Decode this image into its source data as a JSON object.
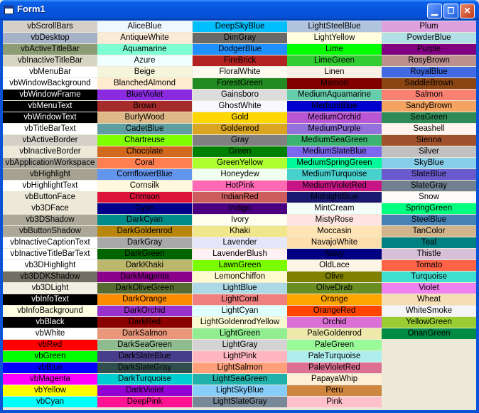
{
  "window": {
    "title": "Form1",
    "min_glyph": "▁",
    "max_glyph": "☐",
    "close_glyph": "✕"
  },
  "columns": [
    [
      {
        "label": "vbScrollBars",
        "bg": "#D4D0C8",
        "fg": "#000000"
      },
      {
        "label": "vbDesktop",
        "bg": "#A6B2C7",
        "fg": "#000000"
      },
      {
        "label": "vbActiveTitleBar",
        "bg": "#8C9D75",
        "fg": "#000000"
      },
      {
        "label": "vbInactiveTitleBar",
        "bg": "#D6D5C4",
        "fg": "#000000"
      },
      {
        "label": "vbMenuBar",
        "bg": "#FFFFFF",
        "fg": "#000000"
      },
      {
        "label": "vbWindowBackground",
        "bg": "#FFFFFF",
        "fg": "#000000"
      },
      {
        "label": "vbWindowFrame",
        "bg": "#000000",
        "fg": "#FFFFFF"
      },
      {
        "label": "vbMenuText",
        "bg": "#000000",
        "fg": "#FFFFFF"
      },
      {
        "label": "vbWindowText",
        "bg": "#000000",
        "fg": "#FFFFFF"
      },
      {
        "label": "vbTitleBarText",
        "bg": "#FFFFFF",
        "fg": "#000000"
      },
      {
        "label": "vbActiveBorder",
        "bg": "#D4D0C8",
        "fg": "#000000"
      },
      {
        "label": "vbInactiveBorder",
        "bg": "#ECE9D8",
        "fg": "#000000"
      },
      {
        "label": "vbApplicationWorkspace",
        "bg": "#A7A49A",
        "fg": "#000000"
      },
      {
        "label": "vbHighlight",
        "bg": "#A6A291",
        "fg": "#000000"
      },
      {
        "label": "vbHighlightText",
        "bg": "#FFFFFF",
        "fg": "#000000"
      },
      {
        "label": "vbButtonFace",
        "bg": "#ECE9D8",
        "fg": "#000000"
      },
      {
        "label": "vb3DFace",
        "bg": "#ECE9D8",
        "fg": "#000000"
      },
      {
        "label": "vb3DShadow",
        "bg": "#ACA899",
        "fg": "#000000"
      },
      {
        "label": "vbButtonShadow",
        "bg": "#ACA899",
        "fg": "#000000"
      },
      {
        "label": "vbInactiveCaptionText",
        "bg": "#FFFFFF",
        "fg": "#000000"
      },
      {
        "label": "vbInactiveTitleBarText",
        "bg": "#FFFFFF",
        "fg": "#000000"
      },
      {
        "label": "vb3DHighlight",
        "bg": "#FFFFFF",
        "fg": "#000000"
      },
      {
        "label": "vb3DDKShadow",
        "bg": "#716F64",
        "fg": "#000000"
      },
      {
        "label": "vb3DLight",
        "bg": "#F1EFE2",
        "fg": "#000000"
      },
      {
        "label": "vbInfoText",
        "bg": "#000000",
        "fg": "#FFFFFF"
      },
      {
        "label": "vbInfoBackground",
        "bg": "#FFFFE1",
        "fg": "#000000"
      },
      {
        "label": "vbBlack",
        "bg": "#000000",
        "fg": "#FFFFFF"
      },
      {
        "label": "vbWhite",
        "bg": "#FFFFFF",
        "fg": "#000000"
      },
      {
        "label": "vbRed",
        "bg": "#FF0000",
        "fg": "#000000"
      },
      {
        "label": "vbGreen",
        "bg": "#00FF00",
        "fg": "#000000"
      },
      {
        "label": "vbBlue",
        "bg": "#0000FF",
        "fg": "#000000"
      },
      {
        "label": "vbMagenta",
        "bg": "#FF00FF",
        "fg": "#000000"
      },
      {
        "label": "vbYellow",
        "bg": "#FFFF00",
        "fg": "#000000"
      },
      {
        "label": "vbCyan",
        "bg": "#00FFFF",
        "fg": "#000000"
      }
    ],
    [
      {
        "label": "AliceBlue",
        "bg": "#F0F8FF",
        "fg": "#000000"
      },
      {
        "label": "AntiqueWhite",
        "bg": "#FAEBD7",
        "fg": "#000000"
      },
      {
        "label": "Aquamarine",
        "bg": "#7FFFD4",
        "fg": "#000000"
      },
      {
        "label": "Azure",
        "bg": "#F0FFFF",
        "fg": "#000000"
      },
      {
        "label": "Beige",
        "bg": "#F5F5DC",
        "fg": "#000000"
      },
      {
        "label": "BlanchedAlmond",
        "bg": "#FFEBCD",
        "fg": "#000000"
      },
      {
        "label": "BlueViolet",
        "bg": "#8A2BE2",
        "fg": "#000000"
      },
      {
        "label": "Brown",
        "bg": "#A52A2A",
        "fg": "#000000"
      },
      {
        "label": "BurlyWood",
        "bg": "#DEB887",
        "fg": "#000000"
      },
      {
        "label": "CadetBlue",
        "bg": "#5F9EA0",
        "fg": "#000000"
      },
      {
        "label": "Chartreuse",
        "bg": "#7FFF00",
        "fg": "#000000"
      },
      {
        "label": "Chocolate",
        "bg": "#D2691E",
        "fg": "#000000"
      },
      {
        "label": "Coral",
        "bg": "#FF7F50",
        "fg": "#000000"
      },
      {
        "label": "CornflowerBlue",
        "bg": "#6495ED",
        "fg": "#000000"
      },
      {
        "label": "Cornsilk",
        "bg": "#FFF8DC",
        "fg": "#000000"
      },
      {
        "label": "Crimson",
        "bg": "#DC143C",
        "fg": "#000000"
      },
      {
        "label": "Cyan",
        "bg": "#00008B",
        "fg": "#000000"
      },
      {
        "label": "DarkCyan",
        "bg": "#008B8B",
        "fg": "#000000"
      },
      {
        "label": "DarkGoldenrod",
        "bg": "#B8860B",
        "fg": "#000000"
      },
      {
        "label": "DarkGray",
        "bg": "#A9A9A9",
        "fg": "#000000"
      },
      {
        "label": "DarkGreen",
        "bg": "#006400",
        "fg": "#000000"
      },
      {
        "label": "DarkKhaki",
        "bg": "#BDB76B",
        "fg": "#000000"
      },
      {
        "label": "DarkMagenta",
        "bg": "#8B008B",
        "fg": "#000000"
      },
      {
        "label": "DarkOliveGreen",
        "bg": "#556B2F",
        "fg": "#000000"
      },
      {
        "label": "DarkOrange",
        "bg": "#FF8C00",
        "fg": "#000000"
      },
      {
        "label": "DarkOrchid",
        "bg": "#9932CC",
        "fg": "#000000"
      },
      {
        "label": "DarkRed",
        "bg": "#8B0000",
        "fg": "#000000"
      },
      {
        "label": "DarkSalmon",
        "bg": "#E9967A",
        "fg": "#000000"
      },
      {
        "label": "DarkSeaGreen",
        "bg": "#8FBC8F",
        "fg": "#000000"
      },
      {
        "label": "DarkSlateBlue",
        "bg": "#483D8B",
        "fg": "#000000"
      },
      {
        "label": "DarkSlateGray",
        "bg": "#2F4F4F",
        "fg": "#000000"
      },
      {
        "label": "DarkTurquoise",
        "bg": "#00CED1",
        "fg": "#000000"
      },
      {
        "label": "DarkViolet",
        "bg": "#9400D3",
        "fg": "#000000"
      },
      {
        "label": "DeepPink",
        "bg": "#FF1493",
        "fg": "#000000"
      }
    ],
    [
      {
        "label": "DeepSkyBlue",
        "bg": "#00BFFF",
        "fg": "#000000"
      },
      {
        "label": "DimGray",
        "bg": "#696969",
        "fg": "#000000"
      },
      {
        "label": "DodgerBlue",
        "bg": "#1E90FF",
        "fg": "#000000"
      },
      {
        "label": "FireBrick",
        "bg": "#B22222",
        "fg": "#000000"
      },
      {
        "label": "FloralWhite",
        "bg": "#FFFAF0",
        "fg": "#000000"
      },
      {
        "label": "ForestGreen",
        "bg": "#228B22",
        "fg": "#000000"
      },
      {
        "label": "Gainsboro",
        "bg": "#DCDCDC",
        "fg": "#000000"
      },
      {
        "label": "GhostWhite",
        "bg": "#F8F8FF",
        "fg": "#000000"
      },
      {
        "label": "Gold",
        "bg": "#FFD700",
        "fg": "#000000"
      },
      {
        "label": "Goldenrod",
        "bg": "#DAA520",
        "fg": "#000000"
      },
      {
        "label": "Gray",
        "bg": "#808080",
        "fg": "#000000"
      },
      {
        "label": "Green",
        "bg": "#008000",
        "fg": "#000000"
      },
      {
        "label": "GreenYellow",
        "bg": "#ADFF2F",
        "fg": "#000000"
      },
      {
        "label": "Honeydew",
        "bg": "#F0FFF0",
        "fg": "#000000"
      },
      {
        "label": "HotPink",
        "bg": "#FF69B4",
        "fg": "#000000"
      },
      {
        "label": "IndianRed",
        "bg": "#CD5C5C",
        "fg": "#000000"
      },
      {
        "label": "Indigo",
        "bg": "#4B0082",
        "fg": "#000000"
      },
      {
        "label": "Ivory",
        "bg": "#FFFFF0",
        "fg": "#000000"
      },
      {
        "label": "Khaki",
        "bg": "#F0E68C",
        "fg": "#000000"
      },
      {
        "label": "Lavender",
        "bg": "#E6E6FA",
        "fg": "#000000"
      },
      {
        "label": "LavenderBlush",
        "bg": "#FFF0F5",
        "fg": "#000000"
      },
      {
        "label": "LawnGreen",
        "bg": "#7CFC00",
        "fg": "#000000"
      },
      {
        "label": "LemonChiffon",
        "bg": "#FFFACD",
        "fg": "#000000"
      },
      {
        "label": "LightBlue",
        "bg": "#ADD8E6",
        "fg": "#000000"
      },
      {
        "label": "LightCoral",
        "bg": "#F08080",
        "fg": "#000000"
      },
      {
        "label": "LightCyan",
        "bg": "#E0FFFF",
        "fg": "#000000"
      },
      {
        "label": "LightGoldenrodYellow",
        "bg": "#FAFAD2",
        "fg": "#000000"
      },
      {
        "label": "LightGreen",
        "bg": "#90EE90",
        "fg": "#000000"
      },
      {
        "label": "LightGray",
        "bg": "#D3D3D3",
        "fg": "#000000"
      },
      {
        "label": "LightPink",
        "bg": "#FFB6C1",
        "fg": "#000000"
      },
      {
        "label": "LightSalmon",
        "bg": "#FFA07A",
        "fg": "#000000"
      },
      {
        "label": "LightSeaGreen",
        "bg": "#20B2AA",
        "fg": "#000000"
      },
      {
        "label": "LightSkyBlue",
        "bg": "#87CEFA",
        "fg": "#000000"
      },
      {
        "label": "LightSlateGray",
        "bg": "#778899",
        "fg": "#000000"
      }
    ],
    [
      {
        "label": "LightSteelBlue",
        "bg": "#B0C4DE",
        "fg": "#000000"
      },
      {
        "label": "LightYellow",
        "bg": "#FFFFE0",
        "fg": "#000000"
      },
      {
        "label": "Lime",
        "bg": "#00FF00",
        "fg": "#000000"
      },
      {
        "label": "LimeGreen",
        "bg": "#32CD32",
        "fg": "#000000"
      },
      {
        "label": "Linen",
        "bg": "#FAF0E6",
        "fg": "#000000"
      },
      {
        "label": "Maroon",
        "bg": "#800000",
        "fg": "#000000"
      },
      {
        "label": "MediumAquamarine",
        "bg": "#66CDAA",
        "fg": "#000000"
      },
      {
        "label": "MediumBlue",
        "bg": "#0000CD",
        "fg": "#000000"
      },
      {
        "label": "MediumOrchid",
        "bg": "#BA55D3",
        "fg": "#000000"
      },
      {
        "label": "MediumPurple",
        "bg": "#9370DB",
        "fg": "#000000"
      },
      {
        "label": "MediumSeaGreen",
        "bg": "#3CB371",
        "fg": "#000000"
      },
      {
        "label": "MediumSlateBlue",
        "bg": "#7B68EE",
        "fg": "#000000"
      },
      {
        "label": "MediumSpringGreen",
        "bg": "#00FA9A",
        "fg": "#000000"
      },
      {
        "label": "MediumTurquoise",
        "bg": "#48D1CC",
        "fg": "#000000"
      },
      {
        "label": "MediumVioletRed",
        "bg": "#C71585",
        "fg": "#000000"
      },
      {
        "label": "MidnightBlue",
        "bg": "#191970",
        "fg": "#000000"
      },
      {
        "label": "MintCream",
        "bg": "#F5FFFA",
        "fg": "#000000"
      },
      {
        "label": "MistyRose",
        "bg": "#FFE4E1",
        "fg": "#000000"
      },
      {
        "label": "Moccasin",
        "bg": "#FFE4B5",
        "fg": "#000000"
      },
      {
        "label": "NavajoWhite",
        "bg": "#FFDEAD",
        "fg": "#000000"
      },
      {
        "label": "Navy",
        "bg": "#000080",
        "fg": "#000000"
      },
      {
        "label": "OldLace",
        "bg": "#FDF5E6",
        "fg": "#000000"
      },
      {
        "label": "Olive",
        "bg": "#808000",
        "fg": "#000000"
      },
      {
        "label": "OliveDrab",
        "bg": "#6B8E23",
        "fg": "#000000"
      },
      {
        "label": "Orange",
        "bg": "#FFA500",
        "fg": "#000000"
      },
      {
        "label": "OrangeRed",
        "bg": "#FF4500",
        "fg": "#000000"
      },
      {
        "label": "Orchid",
        "bg": "#DA70D6",
        "fg": "#000000"
      },
      {
        "label": "PaleGoldenrod",
        "bg": "#EEE8AA",
        "fg": "#000000"
      },
      {
        "label": "PaleGreen",
        "bg": "#98FB98",
        "fg": "#000000"
      },
      {
        "label": "PaleTurquoise",
        "bg": "#AFEEEE",
        "fg": "#000000"
      },
      {
        "label": "PaleVioletRed",
        "bg": "#DB7093",
        "fg": "#000000"
      },
      {
        "label": "PapayaWhip",
        "bg": "#FFEFD5",
        "fg": "#000000"
      },
      {
        "label": "Peru",
        "bg": "#CD853F",
        "fg": "#000000"
      },
      {
        "label": "Pink",
        "bg": "#FFC0CB",
        "fg": "#000000"
      }
    ],
    [
      {
        "label": "Plum",
        "bg": "#DDA0DD",
        "fg": "#000000"
      },
      {
        "label": "PowderBlue",
        "bg": "#B0E0E6",
        "fg": "#000000"
      },
      {
        "label": "Purple",
        "bg": "#800080",
        "fg": "#000000"
      },
      {
        "label": "RosyBrown",
        "bg": "#BC8F8F",
        "fg": "#000000"
      },
      {
        "label": "RoyalBlue",
        "bg": "#4169E1",
        "fg": "#000000"
      },
      {
        "label": "SaddleBrown",
        "bg": "#8B4513",
        "fg": "#000000"
      },
      {
        "label": "Salmon",
        "bg": "#FA8072",
        "fg": "#000000"
      },
      {
        "label": "SandyBrown",
        "bg": "#F4A460",
        "fg": "#000000"
      },
      {
        "label": "SeaGreen",
        "bg": "#2E8B57",
        "fg": "#000000"
      },
      {
        "label": "Seashell",
        "bg": "#FFF5EE",
        "fg": "#000000"
      },
      {
        "label": "Sienna",
        "bg": "#A0522D",
        "fg": "#000000"
      },
      {
        "label": "Silver",
        "bg": "#C0C0C0",
        "fg": "#000000"
      },
      {
        "label": "SkyBlue",
        "bg": "#87CEEB",
        "fg": "#000000"
      },
      {
        "label": "SlateBlue",
        "bg": "#6A5ACD",
        "fg": "#000000"
      },
      {
        "label": "SlateGray",
        "bg": "#708090",
        "fg": "#000000"
      },
      {
        "label": "Snow",
        "bg": "#FFFAFA",
        "fg": "#000000"
      },
      {
        "label": "SpringGreen",
        "bg": "#00FF7F",
        "fg": "#000000"
      },
      {
        "label": "SteelBlue",
        "bg": "#4682B4",
        "fg": "#000000"
      },
      {
        "label": "TanColor",
        "bg": "#D2B48C",
        "fg": "#000000"
      },
      {
        "label": "Teal",
        "bg": "#008080",
        "fg": "#000000"
      },
      {
        "label": "Thistle",
        "bg": "#D8BFD8",
        "fg": "#000000"
      },
      {
        "label": "Tomato",
        "bg": "#FF6347",
        "fg": "#000000"
      },
      {
        "label": "Turquoise",
        "bg": "#40E0D0",
        "fg": "#000000"
      },
      {
        "label": "Violet",
        "bg": "#EE82EE",
        "fg": "#000000"
      },
      {
        "label": "Wheat",
        "bg": "#F5DEB3",
        "fg": "#000000"
      },
      {
        "label": "WhiteSmoke",
        "bg": "#F5F5F5",
        "fg": "#000000"
      },
      {
        "label": "YellowGreen",
        "bg": "#9ACD32",
        "fg": "#000000"
      },
      {
        "label": "OnanGreen",
        "bg": "#008B45",
        "fg": "#000000"
      }
    ]
  ]
}
